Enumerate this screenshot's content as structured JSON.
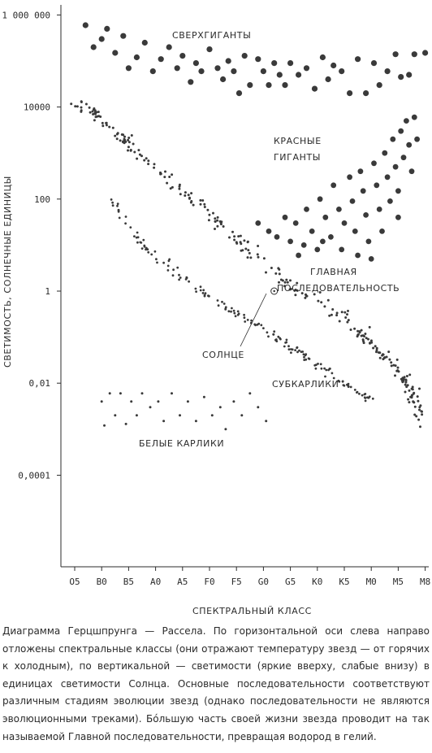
{
  "chart_data": {
    "type": "scatter",
    "xlabel": "СПЕКТРАЛЬНЫЙ КЛАСС",
    "ylabel": "СВЕТИМОСТЬ, СОЛНЕЧНЫЕ ЕДИНИЦЫ",
    "x_categories": [
      "O5",
      "B0",
      "B5",
      "A0",
      "A5",
      "F0",
      "F5",
      "G0",
      "G5",
      "K0",
      "K5",
      "M0",
      "M5",
      "M8"
    ],
    "y_scale": "log",
    "y_ticks": [
      {
        "value": 1000000,
        "label": "1 000 000"
      },
      {
        "value": 10000,
        "label": "10000"
      },
      {
        "value": 100,
        "label": "100"
      },
      {
        "value": 1,
        "label": "1"
      },
      {
        "value": 0.01,
        "label": "0,01"
      },
      {
        "value": 0.0001,
        "label": "0,0001"
      }
    ],
    "ylim": [
      5e-07,
      5000000
    ],
    "regions": [
      {
        "label": "СВЕРХГИГАНТЫ",
        "position": "top-center"
      },
      {
        "label": "КРАСНЫЕ ГИГАНТЫ",
        "position": "upper-right"
      },
      {
        "label": "ГЛАВНАЯ ПОСЛЕДОВАТЕЛЬНОСТЬ",
        "position": "center-right"
      },
      {
        "label": "СОЛНЦЕ",
        "position": "center"
      },
      {
        "label": "СУБКАРЛИКИ",
        "position": "lower-right"
      },
      {
        "label": "БЕЛЫЕ КАРЛИКИ",
        "position": "lower-left"
      }
    ],
    "sun": {
      "x": 7.4,
      "y": 1
    },
    "series": [
      {
        "group": "supergiants",
        "points": [
          [
            0.4,
            600000
          ],
          [
            0.7,
            200000
          ],
          [
            1.0,
            300000
          ],
          [
            1.2,
            500000
          ],
          [
            1.5,
            150000
          ],
          [
            1.8,
            350000
          ],
          [
            2.0,
            70000
          ],
          [
            2.3,
            120000
          ],
          [
            2.6,
            250000
          ],
          [
            2.9,
            60000
          ],
          [
            3.2,
            110000
          ],
          [
            3.5,
            200000
          ],
          [
            3.8,
            70000
          ],
          [
            4.0,
            130000
          ],
          [
            4.3,
            35000
          ],
          [
            4.5,
            90000
          ],
          [
            4.7,
            60000
          ],
          [
            5.0,
            180000
          ],
          [
            5.3,
            70000
          ],
          [
            5.5,
            40000
          ],
          [
            5.7,
            100000
          ],
          [
            5.9,
            60000
          ],
          [
            6.1,
            20000
          ],
          [
            6.3,
            130000
          ],
          [
            6.5,
            30000
          ],
          [
            6.8,
            110000
          ],
          [
            7.0,
            60000
          ],
          [
            7.2,
            30000
          ],
          [
            7.4,
            90000
          ],
          [
            7.6,
            50000
          ],
          [
            7.8,
            30000
          ],
          [
            8.0,
            90000
          ],
          [
            8.3,
            50000
          ],
          [
            8.6,
            70000
          ],
          [
            8.9,
            25000
          ],
          [
            9.2,
            120000
          ],
          [
            9.4,
            40000
          ],
          [
            9.6,
            80000
          ],
          [
            9.9,
            60000
          ],
          [
            10.2,
            20000
          ],
          [
            10.5,
            110000
          ],
          [
            10.8,
            20000
          ],
          [
            11.1,
            90000
          ],
          [
            11.3,
            30000
          ],
          [
            11.6,
            60000
          ],
          [
            11.9,
            140000
          ],
          [
            12.1,
            45000
          ],
          [
            12.4,
            50000
          ],
          [
            12.6,
            140000
          ],
          [
            13.0,
            150000
          ]
        ]
      },
      {
        "group": "red-giants",
        "points": [
          [
            6.8,
            30
          ],
          [
            7.2,
            20
          ],
          [
            7.5,
            15
          ],
          [
            7.8,
            40
          ],
          [
            8.0,
            12
          ],
          [
            8.2,
            30
          ],
          [
            8.5,
            10
          ],
          [
            8.6,
            60
          ],
          [
            8.8,
            20
          ],
          [
            9.0,
            8
          ],
          [
            9.1,
            100
          ],
          [
            9.3,
            40
          ],
          [
            9.5,
            15
          ],
          [
            9.6,
            200
          ],
          [
            9.8,
            60
          ],
          [
            9.9,
            8
          ],
          [
            10.0,
            30
          ],
          [
            10.2,
            300
          ],
          [
            10.3,
            90
          ],
          [
            10.4,
            20
          ],
          [
            10.6,
            400
          ],
          [
            10.7,
            150
          ],
          [
            10.8,
            45
          ],
          [
            10.9,
            12
          ],
          [
            11.1,
            600
          ],
          [
            11.2,
            200
          ],
          [
            11.3,
            60
          ],
          [
            11.4,
            20
          ],
          [
            11.5,
            1000
          ],
          [
            11.6,
            300
          ],
          [
            11.7,
            90
          ],
          [
            11.8,
            2000
          ],
          [
            11.9,
            500
          ],
          [
            12.0,
            150
          ],
          [
            12.1,
            3000
          ],
          [
            12.2,
            800
          ],
          [
            12.3,
            5000
          ],
          [
            12.4,
            1500
          ],
          [
            12.5,
            400
          ],
          [
            12.6,
            6000
          ],
          [
            12.7,
            2000
          ],
          [
            11.0,
            5
          ],
          [
            12.0,
            40
          ],
          [
            10.5,
            6
          ],
          [
            9.2,
            12
          ],
          [
            8.3,
            6
          ]
        ]
      },
      {
        "group": "main-sequence-and-subdwarfs",
        "generated": true,
        "count": 480
      },
      {
        "group": "white-dwarfs",
        "points": [
          [
            1.0,
            0.004
          ],
          [
            1.1,
            0.0012
          ],
          [
            1.3,
            0.006
          ],
          [
            1.5,
            0.002
          ],
          [
            1.7,
            0.006
          ],
          [
            1.9,
            0.0013
          ],
          [
            2.1,
            0.004
          ],
          [
            2.3,
            0.002
          ],
          [
            2.5,
            0.006
          ],
          [
            2.8,
            0.003
          ],
          [
            3.1,
            0.004
          ],
          [
            3.3,
            0.0015
          ],
          [
            3.6,
            0.006
          ],
          [
            3.9,
            0.002
          ],
          [
            4.2,
            0.004
          ],
          [
            4.5,
            0.0015
          ],
          [
            4.8,
            0.005
          ],
          [
            5.1,
            0.002
          ],
          [
            5.4,
            0.003
          ],
          [
            5.6,
            0.001
          ],
          [
            5.9,
            0.004
          ],
          [
            6.2,
            0.002
          ],
          [
            6.5,
            0.006
          ],
          [
            6.8,
            0.003
          ],
          [
            7.1,
            0.0015
          ]
        ]
      }
    ]
  },
  "caption": "Диаграмма Герцшпрунга — Рассела. По горизонтальной оси слева направо отложены спектральные классы (они отражают температуру звезд — от горячих к холодным), по вертикальной — светимости (яркие вверху, слабые внизу) в единицах светимости Солнца. Основные последовательности соответствуют различным стадиям эволюции звезд (однако последовательности не являются эволюционными треками). Бóльшую часть своей жизни звезда проводит на так называемой Главной последовательности, превращая водород в гелий."
}
